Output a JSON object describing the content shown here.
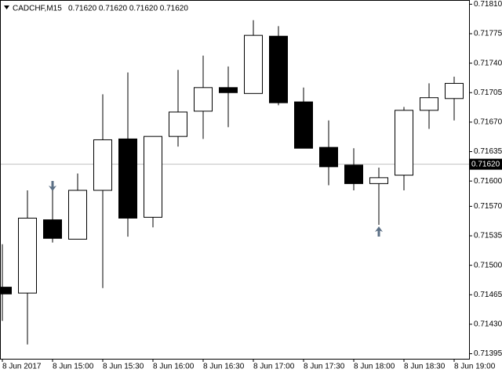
{
  "chart_data": {
    "type": "candlestick",
    "title": "CADCHF,M15",
    "ohlc_info": "0.71620 0.71620 0.71620 0.71620",
    "categories": [
      "8 Jun 2017",
      null,
      "8 Jun 15:00",
      null,
      "8 Jun 15:30",
      null,
      "8 Jun 16:00",
      null,
      "8 Jun 16:30",
      null,
      "8 Jun 17:00",
      null,
      "8 Jun 17:30",
      null,
      "8 Jun 18:00",
      null,
      "8 Jun 18:30",
      null,
      "8 Jun 19:00"
    ],
    "open": [
      0.71474,
      0.71467,
      0.71554,
      0.71531,
      0.71589,
      0.7165,
      0.71557,
      0.71653,
      0.71683,
      0.71711,
      0.71704,
      0.71772,
      0.71694,
      0.7164,
      0.71619,
      0.71597,
      0.71607,
      0.71684,
      0.71698
    ],
    "high": [
      0.71525,
      0.71589,
      0.71589,
      0.71609,
      0.71703,
      0.71729,
      0.71653,
      0.71732,
      0.71749,
      0.71736,
      0.71791,
      0.71784,
      0.71711,
      0.71672,
      0.71639,
      0.71616,
      0.71688,
      0.71716,
      0.71724
    ],
    "low": [
      0.71434,
      0.71406,
      0.71527,
      0.71531,
      0.71473,
      0.71534,
      0.71545,
      0.71641,
      0.7165,
      0.71664,
      0.71704,
      0.7169,
      0.71639,
      0.71595,
      0.71589,
      0.71548,
      0.71589,
      0.71662,
      0.71672
    ],
    "close": [
      0.71466,
      0.71556,
      0.71532,
      0.71589,
      0.71649,
      0.71556,
      0.71653,
      0.71682,
      0.71711,
      0.71705,
      0.71773,
      0.71693,
      0.71639,
      0.71617,
      0.71597,
      0.71604,
      0.71684,
      0.71699,
      0.71716
    ],
    "current_price": {
      "value": 0.7162,
      "label": "0.71620"
    },
    "ylim": [
      0.71389,
      0.71815
    ],
    "yticks": [
      {
        "value": 0.7181,
        "label": "0.71810"
      },
      0.71775,
      {
        "value": 0.7174,
        "label": "0.71740"
      },
      0.71705,
      {
        "value": 0.7167,
        "label": "0.71670"
      },
      0.71635,
      {
        "value": 0.716,
        "label": "0.71600"
      },
      {
        "value": 0.7157,
        "label": "0.71570"
      },
      0.71535,
      {
        "value": 0.715,
        "label": "0.71500"
      },
      0.71465,
      {
        "value": 0.7143,
        "label": "0.71430"
      },
      0.71395
    ]
  }
}
